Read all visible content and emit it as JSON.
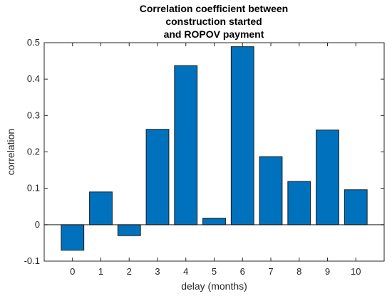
{
  "chart_data": {
    "type": "bar",
    "title_lines": [
      "Correlation coefficient between",
      "construction started",
      "and ROPOV payment"
    ],
    "xlabel": "delay (months)",
    "ylabel": "correlation",
    "categories": [
      "0",
      "1",
      "2",
      "3",
      "4",
      "5",
      "6",
      "7",
      "8",
      "9",
      "10"
    ],
    "values": [
      -0.07,
      0.09,
      -0.03,
      0.262,
      0.437,
      0.018,
      0.489,
      0.187,
      0.119,
      0.26,
      0.096
    ],
    "yticks": [
      "-0.1",
      "0",
      "0.1",
      "0.2",
      "0.3",
      "0.4",
      "0.5"
    ],
    "ytick_values": [
      -0.1,
      0,
      0.1,
      0.2,
      0.3,
      0.4,
      0.5
    ],
    "ylim": [
      -0.1,
      0.5
    ],
    "xlim": [
      -1,
      11
    ],
    "bar_color": "#0072BD",
    "grid": false,
    "legend": "none"
  }
}
